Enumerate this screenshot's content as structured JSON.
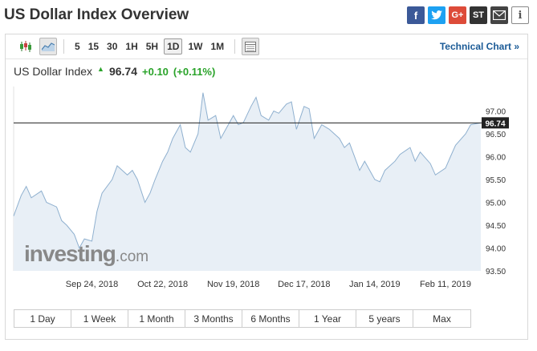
{
  "page": {
    "title": "US Dollar Index Overview"
  },
  "share": [
    "facebook-icon",
    "twitter-icon",
    "google-plus-icon",
    "stocktwits-icon",
    "mail-icon",
    "info-icon"
  ],
  "share_labels": {
    "gplus": "G+",
    "st": "ST",
    "info": "i"
  },
  "toolbar": {
    "chart_types": [
      "candlestick-icon",
      "area-chart-icon"
    ],
    "timeframes": [
      "5",
      "15",
      "30",
      "1H",
      "5H",
      "1D",
      "1W",
      "1M"
    ],
    "active_timeframe": "1D",
    "table_icon": "table-icon",
    "technical_link": "Technical Chart »"
  },
  "quote": {
    "name": "US Dollar Index",
    "price": "96.74",
    "change": "+0.10",
    "change_pct": "(+0.11%)",
    "direction": "up"
  },
  "colors": {
    "up": "#2aa32a",
    "area_fill": "#e8eff6",
    "line": "#8fb0cf",
    "link": "#1a5a96"
  },
  "chart_data": {
    "type": "area",
    "title": "",
    "x": [
      "2018-08-24",
      "2018-08-27",
      "2018-08-29",
      "2018-08-31",
      "2018-09-04",
      "2018-09-06",
      "2018-09-10",
      "2018-09-12",
      "2018-09-14",
      "2018-09-17",
      "2018-09-19",
      "2018-09-21",
      "2018-09-24",
      "2018-09-26",
      "2018-09-28",
      "2018-10-02",
      "2018-10-04",
      "2018-10-08",
      "2018-10-10",
      "2018-10-12",
      "2018-10-15",
      "2018-10-17",
      "2018-10-19",
      "2018-10-22",
      "2018-10-24",
      "2018-10-26",
      "2018-10-29",
      "2018-10-31",
      "2018-11-02",
      "2018-11-05",
      "2018-11-07",
      "2018-11-09",
      "2018-11-12",
      "2018-11-14",
      "2018-11-16",
      "2018-11-19",
      "2018-11-21",
      "2018-11-23",
      "2018-11-26",
      "2018-11-28",
      "2018-11-30",
      "2018-12-03",
      "2018-12-05",
      "2018-12-07",
      "2018-12-10",
      "2018-12-12",
      "2018-12-14",
      "2018-12-17",
      "2018-12-19",
      "2018-12-21",
      "2018-12-24",
      "2018-12-27",
      "2018-12-31",
      "2019-01-02",
      "2019-01-04",
      "2019-01-08",
      "2019-01-10",
      "2019-01-14",
      "2019-01-16",
      "2019-01-18",
      "2019-01-22",
      "2019-01-24",
      "2019-01-28",
      "2019-01-30",
      "2019-02-01",
      "2019-02-05",
      "2019-02-07",
      "2019-02-11",
      "2019-02-13",
      "2019-02-15",
      "2019-02-19",
      "2019-02-21",
      "2019-02-25"
    ],
    "y": [
      94.7,
      95.15,
      95.35,
      95.1,
      95.25,
      95.0,
      94.9,
      94.6,
      94.5,
      94.3,
      94.0,
      94.2,
      94.15,
      94.8,
      95.2,
      95.5,
      95.8,
      95.6,
      95.7,
      95.5,
      95.0,
      95.2,
      95.5,
      95.9,
      96.1,
      96.4,
      96.7,
      96.2,
      96.1,
      96.5,
      97.4,
      96.8,
      96.9,
      96.4,
      96.6,
      96.9,
      96.7,
      96.75,
      97.1,
      97.3,
      96.9,
      96.8,
      97.0,
      96.95,
      97.15,
      97.2,
      96.6,
      97.1,
      97.05,
      96.4,
      96.7,
      96.6,
      96.4,
      96.2,
      96.3,
      95.7,
      95.9,
      95.5,
      95.45,
      95.7,
      95.9,
      96.05,
      96.2,
      95.9,
      96.1,
      95.85,
      95.6,
      95.75,
      96.0,
      96.25,
      96.5,
      96.7,
      96.74
    ],
    "ylim": [
      93.5,
      97.5
    ],
    "yticks": [
      "97.00",
      "96.50",
      "96.00",
      "95.50",
      "95.00",
      "94.50",
      "94.00",
      "93.50"
    ],
    "xticks": [
      {
        "label": "Sep 24, 2018",
        "date": "2018-09-24"
      },
      {
        "label": "Oct 22, 2018",
        "date": "2018-10-22"
      },
      {
        "label": "Nov 19, 2018",
        "date": "2018-11-19"
      },
      {
        "label": "Dec 17, 2018",
        "date": "2018-12-17"
      },
      {
        "label": "Jan 14, 2019",
        "date": "2019-01-14"
      },
      {
        "label": "Feb 11, 2019",
        "date": "2019-02-11"
      }
    ],
    "last_value_label": "96.74",
    "last_value": 96.74,
    "grid": false,
    "watermark": {
      "brand": "investing",
      "suffix": ".com"
    }
  },
  "range_buttons": [
    "1 Day",
    "1 Week",
    "1 Month",
    "3 Months",
    "6 Months",
    "1 Year",
    "5 years",
    "Max"
  ]
}
